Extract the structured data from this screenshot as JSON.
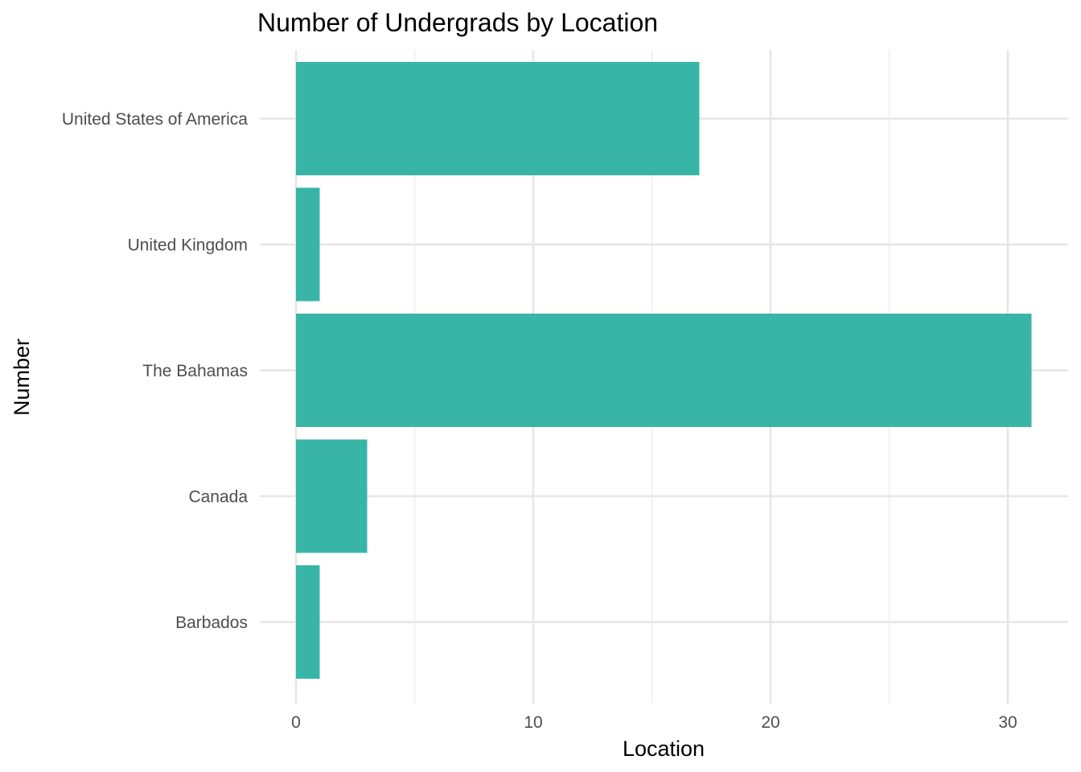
{
  "chart_data": {
    "type": "bar",
    "orientation": "horizontal",
    "title": "Number of Undergrads by Location",
    "xlabel": "Location",
    "ylabel": "Number",
    "categories": [
      "United States of America",
      "United Kingdom",
      "The Bahamas",
      "Canada",
      "Barbados"
    ],
    "values": [
      17,
      1,
      31,
      3,
      1
    ],
    "xlim": [
      0,
      32
    ],
    "x_ticks": [
      0,
      10,
      20,
      30
    ],
    "x_minor_ticks": [
      5,
      15,
      25
    ],
    "grid": true,
    "legend": "none",
    "bar_color": "#38b5a6"
  }
}
